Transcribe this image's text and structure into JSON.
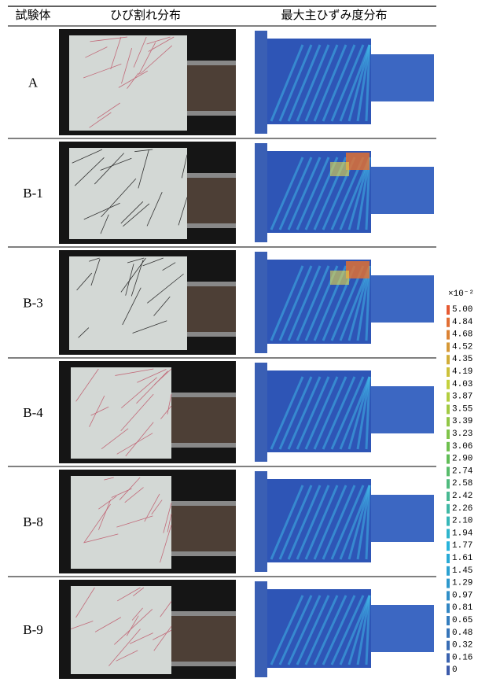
{
  "table": {
    "header": [
      "試験体",
      "ひび割れ分布",
      "最大主ひずみ度分布"
    ],
    "rows": [
      "A",
      "B-1",
      "B-3",
      "B-4",
      "B-8",
      "B-9"
    ]
  },
  "legend": {
    "unit": "×10⁻²",
    "labels": [
      "5.00",
      "4.84",
      "4.68",
      "4.52",
      "4.35",
      "4.19",
      "4.03",
      "3.87",
      "3.55",
      "3.39",
      "3.23",
      "3.06",
      "2.90",
      "2.74",
      "2.58",
      "2.42",
      "2.26",
      "2.10",
      "1.94",
      "1.77",
      "1.61",
      "1.45",
      "1.29",
      "0.97",
      "0.81",
      "0.65",
      "0.48",
      "0.32",
      "0.16",
      "0"
    ]
  }
}
